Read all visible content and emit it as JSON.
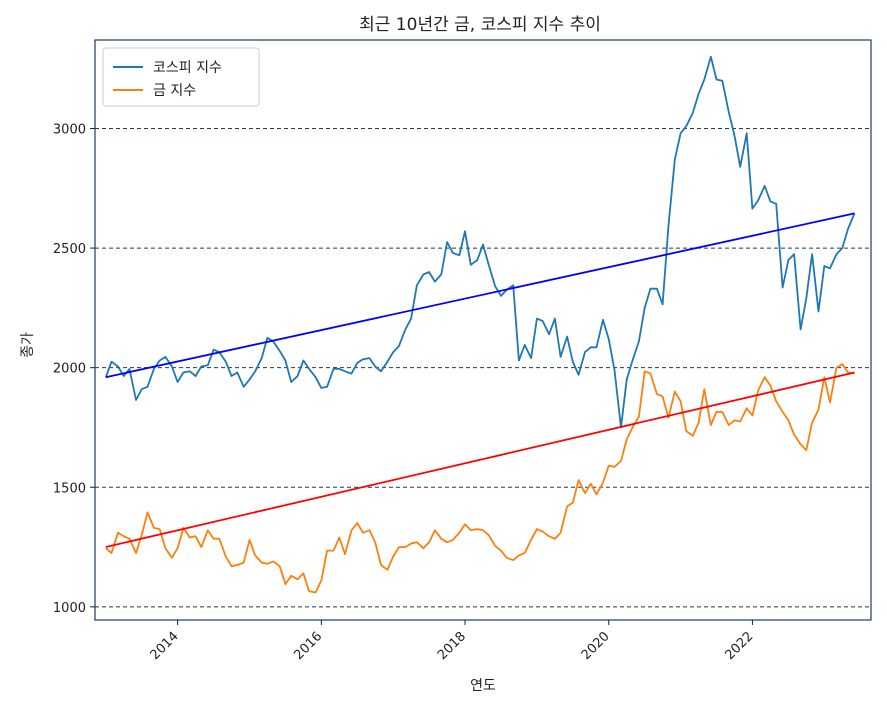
{
  "chart_data": {
    "type": "line",
    "title": "최근 10년간 금, 코스피 지수 추이",
    "xlabel": "연도",
    "ylabel": "종가",
    "xlim": [
      2012.85,
      2023.65
    ],
    "ylim": [
      945,
      3370
    ],
    "x_ticks": [
      2014,
      2016,
      2018,
      2020,
      2022
    ],
    "x_tick_labels": [
      "2014",
      "2016",
      "2018",
      "2020",
      "2022"
    ],
    "y_ticks": [
      1000,
      1500,
      2000,
      2500,
      3000
    ],
    "y_tick_labels": [
      "1000",
      "1500",
      "2000",
      "2500",
      "3000"
    ],
    "grid": "horizontal-dashed",
    "legend_position": "top-left",
    "series": [
      {
        "name": "코스피 지수",
        "color": "#1f77b4",
        "points": [
          [
            2013.0,
            1960
          ],
          [
            2013.08,
            2025
          ],
          [
            2013.17,
            2005
          ],
          [
            2013.25,
            1965
          ],
          [
            2013.33,
            1995
          ],
          [
            2013.42,
            1865
          ],
          [
            2013.5,
            1910
          ],
          [
            2013.58,
            1920
          ],
          [
            2013.67,
            1995
          ],
          [
            2013.75,
            2030
          ],
          [
            2013.83,
            2045
          ],
          [
            2013.92,
            2005
          ],
          [
            2014.0,
            1940
          ],
          [
            2014.08,
            1980
          ],
          [
            2014.17,
            1985
          ],
          [
            2014.25,
            1965
          ],
          [
            2014.33,
            2005
          ],
          [
            2014.42,
            2010
          ],
          [
            2014.5,
            2075
          ],
          [
            2014.58,
            2065
          ],
          [
            2014.67,
            2025
          ],
          [
            2014.75,
            1965
          ],
          [
            2014.83,
            1980
          ],
          [
            2014.92,
            1920
          ],
          [
            2015.0,
            1950
          ],
          [
            2015.08,
            1985
          ],
          [
            2015.17,
            2040
          ],
          [
            2015.25,
            2125
          ],
          [
            2015.33,
            2110
          ],
          [
            2015.42,
            2070
          ],
          [
            2015.5,
            2030
          ],
          [
            2015.58,
            1940
          ],
          [
            2015.67,
            1965
          ],
          [
            2015.75,
            2030
          ],
          [
            2015.83,
            1995
          ],
          [
            2015.92,
            1960
          ],
          [
            2016.0,
            1915
          ],
          [
            2016.08,
            1920
          ],
          [
            2016.17,
            1995
          ],
          [
            2016.25,
            1995
          ],
          [
            2016.33,
            1985
          ],
          [
            2016.42,
            1975
          ],
          [
            2016.5,
            2020
          ],
          [
            2016.58,
            2035
          ],
          [
            2016.67,
            2040
          ],
          [
            2016.75,
            2005
          ],
          [
            2016.83,
            1985
          ],
          [
            2016.92,
            2025
          ],
          [
            2017.0,
            2065
          ],
          [
            2017.08,
            2090
          ],
          [
            2017.17,
            2160
          ],
          [
            2017.25,
            2205
          ],
          [
            2017.33,
            2345
          ],
          [
            2017.42,
            2390
          ],
          [
            2017.5,
            2400
          ],
          [
            2017.58,
            2360
          ],
          [
            2017.67,
            2390
          ],
          [
            2017.75,
            2525
          ],
          [
            2017.83,
            2480
          ],
          [
            2017.92,
            2470
          ],
          [
            2018.0,
            2570
          ],
          [
            2018.08,
            2430
          ],
          [
            2018.17,
            2450
          ],
          [
            2018.25,
            2515
          ],
          [
            2018.33,
            2430
          ],
          [
            2018.42,
            2340
          ],
          [
            2018.5,
            2300
          ],
          [
            2018.58,
            2325
          ],
          [
            2018.67,
            2345
          ],
          [
            2018.75,
            2030
          ],
          [
            2018.83,
            2095
          ],
          [
            2018.92,
            2040
          ],
          [
            2019.0,
            2205
          ],
          [
            2019.08,
            2195
          ],
          [
            2019.17,
            2140
          ],
          [
            2019.25,
            2205
          ],
          [
            2019.33,
            2045
          ],
          [
            2019.42,
            2130
          ],
          [
            2019.5,
            2025
          ],
          [
            2019.58,
            1970
          ],
          [
            2019.67,
            2065
          ],
          [
            2019.75,
            2085
          ],
          [
            2019.83,
            2085
          ],
          [
            2019.92,
            2200
          ],
          [
            2020.0,
            2120
          ],
          [
            2020.08,
            1990
          ],
          [
            2020.17,
            1750
          ],
          [
            2020.25,
            1950
          ],
          [
            2020.33,
            2030
          ],
          [
            2020.42,
            2110
          ],
          [
            2020.5,
            2250
          ],
          [
            2020.58,
            2330
          ],
          [
            2020.67,
            2330
          ],
          [
            2020.75,
            2265
          ],
          [
            2020.83,
            2590
          ],
          [
            2020.92,
            2870
          ],
          [
            2021.0,
            2980
          ],
          [
            2021.08,
            3010
          ],
          [
            2021.17,
            3065
          ],
          [
            2021.25,
            3145
          ],
          [
            2021.33,
            3205
          ],
          [
            2021.42,
            3300
          ],
          [
            2021.5,
            3205
          ],
          [
            2021.58,
            3200
          ],
          [
            2021.67,
            3070
          ],
          [
            2021.75,
            2970
          ],
          [
            2021.83,
            2840
          ],
          [
            2021.92,
            2980
          ],
          [
            2022.0,
            2665
          ],
          [
            2022.08,
            2700
          ],
          [
            2022.17,
            2760
          ],
          [
            2022.25,
            2695
          ],
          [
            2022.33,
            2685
          ],
          [
            2022.42,
            2335
          ],
          [
            2022.5,
            2450
          ],
          [
            2022.58,
            2475
          ],
          [
            2022.67,
            2160
          ],
          [
            2022.75,
            2290
          ],
          [
            2022.83,
            2475
          ],
          [
            2022.92,
            2235
          ],
          [
            2023.0,
            2425
          ],
          [
            2023.08,
            2415
          ],
          [
            2023.17,
            2475
          ],
          [
            2023.25,
            2500
          ],
          [
            2023.33,
            2580
          ],
          [
            2023.42,
            2645
          ]
        ]
      },
      {
        "name": "금 지수",
        "color": "#ff7f0e",
        "points": [
          [
            2013.0,
            1245
          ],
          [
            2013.08,
            1225
          ],
          [
            2013.17,
            1310
          ],
          [
            2013.25,
            1295
          ],
          [
            2013.33,
            1285
          ],
          [
            2013.42,
            1225
          ],
          [
            2013.5,
            1300
          ],
          [
            2013.58,
            1395
          ],
          [
            2013.67,
            1330
          ],
          [
            2013.75,
            1325
          ],
          [
            2013.83,
            1245
          ],
          [
            2013.92,
            1205
          ],
          [
            2014.0,
            1245
          ],
          [
            2014.08,
            1330
          ],
          [
            2014.17,
            1290
          ],
          [
            2014.25,
            1295
          ],
          [
            2014.33,
            1250
          ],
          [
            2014.42,
            1320
          ],
          [
            2014.5,
            1285
          ],
          [
            2014.58,
            1285
          ],
          [
            2014.67,
            1210
          ],
          [
            2014.75,
            1170
          ],
          [
            2014.83,
            1175
          ],
          [
            2014.92,
            1185
          ],
          [
            2015.0,
            1280
          ],
          [
            2015.08,
            1215
          ],
          [
            2015.17,
            1185
          ],
          [
            2015.25,
            1180
          ],
          [
            2015.33,
            1190
          ],
          [
            2015.42,
            1170
          ],
          [
            2015.5,
            1095
          ],
          [
            2015.58,
            1130
          ],
          [
            2015.67,
            1115
          ],
          [
            2015.75,
            1140
          ],
          [
            2015.83,
            1065
          ],
          [
            2015.92,
            1060
          ],
          [
            2016.0,
            1110
          ],
          [
            2016.08,
            1235
          ],
          [
            2016.17,
            1235
          ],
          [
            2016.25,
            1290
          ],
          [
            2016.33,
            1220
          ],
          [
            2016.42,
            1320
          ],
          [
            2016.5,
            1350
          ],
          [
            2016.58,
            1310
          ],
          [
            2016.67,
            1320
          ],
          [
            2016.75,
            1270
          ],
          [
            2016.83,
            1175
          ],
          [
            2016.92,
            1155
          ],
          [
            2017.0,
            1210
          ],
          [
            2017.08,
            1250
          ],
          [
            2017.17,
            1250
          ],
          [
            2017.25,
            1265
          ],
          [
            2017.33,
            1270
          ],
          [
            2017.42,
            1245
          ],
          [
            2017.5,
            1270
          ],
          [
            2017.58,
            1320
          ],
          [
            2017.67,
            1285
          ],
          [
            2017.75,
            1270
          ],
          [
            2017.83,
            1280
          ],
          [
            2017.92,
            1310
          ],
          [
            2018.0,
            1345
          ],
          [
            2018.08,
            1320
          ],
          [
            2018.17,
            1325
          ],
          [
            2018.25,
            1320
          ],
          [
            2018.33,
            1300
          ],
          [
            2018.42,
            1255
          ],
          [
            2018.5,
            1235
          ],
          [
            2018.58,
            1205
          ],
          [
            2018.67,
            1195
          ],
          [
            2018.75,
            1215
          ],
          [
            2018.83,
            1225
          ],
          [
            2018.92,
            1280
          ],
          [
            2019.0,
            1325
          ],
          [
            2019.08,
            1315
          ],
          [
            2019.17,
            1295
          ],
          [
            2019.25,
            1285
          ],
          [
            2019.33,
            1310
          ],
          [
            2019.42,
            1420
          ],
          [
            2019.5,
            1435
          ],
          [
            2019.58,
            1530
          ],
          [
            2019.67,
            1475
          ],
          [
            2019.75,
            1515
          ],
          [
            2019.83,
            1470
          ],
          [
            2019.92,
            1520
          ],
          [
            2020.0,
            1590
          ],
          [
            2020.08,
            1585
          ],
          [
            2020.17,
            1610
          ],
          [
            2020.25,
            1700
          ],
          [
            2020.33,
            1750
          ],
          [
            2020.42,
            1795
          ],
          [
            2020.5,
            1985
          ],
          [
            2020.58,
            1975
          ],
          [
            2020.67,
            1890
          ],
          [
            2020.75,
            1880
          ],
          [
            2020.83,
            1790
          ],
          [
            2020.92,
            1900
          ],
          [
            2021.0,
            1860
          ],
          [
            2021.08,
            1735
          ],
          [
            2021.17,
            1715
          ],
          [
            2021.25,
            1770
          ],
          [
            2021.33,
            1910
          ],
          [
            2021.42,
            1760
          ],
          [
            2021.5,
            1815
          ],
          [
            2021.58,
            1815
          ],
          [
            2021.67,
            1760
          ],
          [
            2021.75,
            1780
          ],
          [
            2021.83,
            1775
          ],
          [
            2021.92,
            1830
          ],
          [
            2022.0,
            1800
          ],
          [
            2022.08,
            1905
          ],
          [
            2022.17,
            1960
          ],
          [
            2022.25,
            1925
          ],
          [
            2022.33,
            1860
          ],
          [
            2022.42,
            1815
          ],
          [
            2022.5,
            1780
          ],
          [
            2022.58,
            1720
          ],
          [
            2022.67,
            1680
          ],
          [
            2022.75,
            1655
          ],
          [
            2022.83,
            1770
          ],
          [
            2022.92,
            1825
          ],
          [
            2023.0,
            1960
          ],
          [
            2023.08,
            1855
          ],
          [
            2023.17,
            2000
          ],
          [
            2023.25,
            2015
          ],
          [
            2023.33,
            1980
          ],
          [
            2023.42,
            1975
          ]
        ]
      }
    ],
    "trendlines": [
      {
        "color": "#0000ff",
        "from": [
          2013.0,
          1960
        ],
        "to": [
          2023.42,
          2645
        ]
      },
      {
        "color": "#ff0000",
        "from": [
          2013.0,
          1250
        ],
        "to": [
          2023.42,
          1980
        ]
      }
    ],
    "legend": [
      {
        "label": "코스피 지수",
        "color": "#1f77b4"
      },
      {
        "label": "금 지수",
        "color": "#ff7f0e"
      }
    ]
  }
}
